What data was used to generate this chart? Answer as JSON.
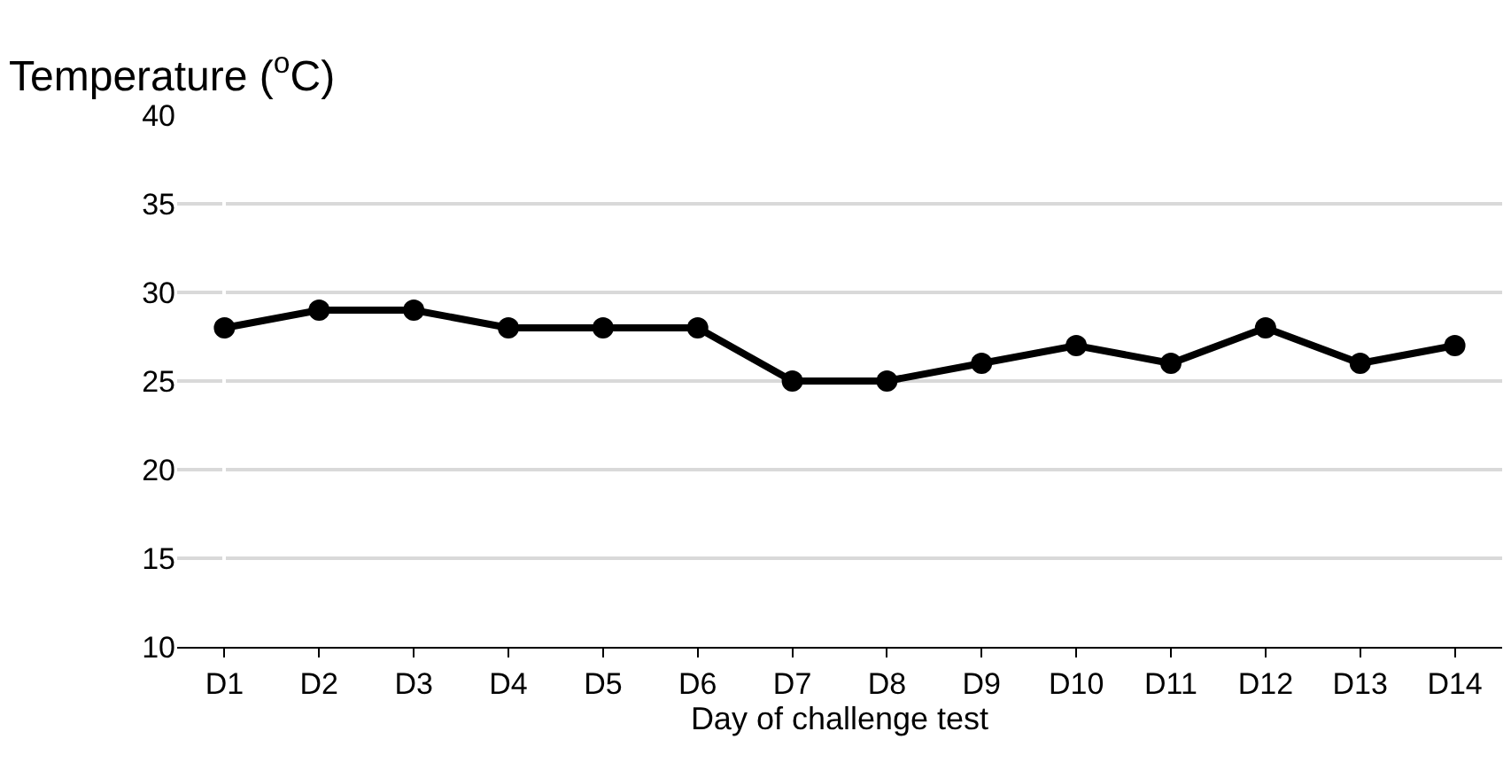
{
  "chart_data": {
    "type": "line",
    "ylabel": "Temperature ($^{o}$C)",
    "xlabel": "Day of challenge test",
    "categories": [
      "D1",
      "D2",
      "D3",
      "D4",
      "D5",
      "D6",
      "D7",
      "D8",
      "D9",
      "D10",
      "D11",
      "D12",
      "D13",
      "D14"
    ],
    "series": [
      {
        "color": "#000000",
        "values": [
          28,
          29,
          29,
          28,
          28,
          28,
          25,
          25,
          26,
          27,
          26,
          28,
          26,
          27
        ]
      }
    ],
    "ylim": [
      10,
      40
    ],
    "yticks": [
      10,
      15,
      20,
      25,
      30,
      35,
      40
    ],
    "grid": "y",
    "marker": "circle",
    "line_style": "solid",
    "legend": false
  }
}
